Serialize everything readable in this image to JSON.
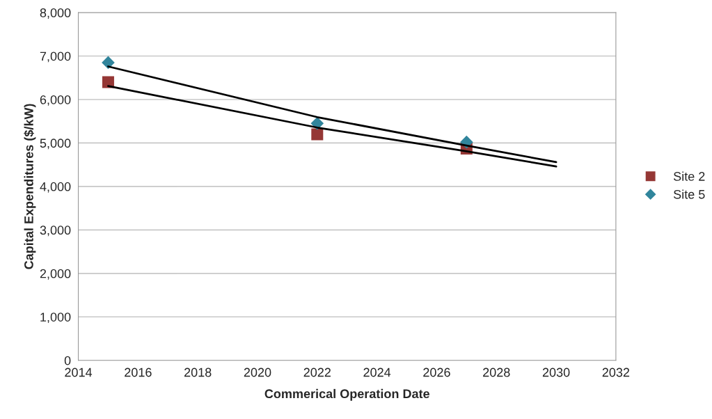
{
  "chart_data": {
    "type": "scatter",
    "xlabel": "Commerical Operation Date",
    "ylabel": "Capital Expenditures ($/kW)",
    "xlim": [
      2014,
      2032
    ],
    "xticks": [
      2014,
      2016,
      2018,
      2020,
      2022,
      2024,
      2026,
      2028,
      2030,
      2032
    ],
    "ylim": [
      0,
      8000
    ],
    "yticks": [
      {
        "value": 0,
        "label": "0"
      },
      {
        "value": 1000,
        "label": "1,000"
      },
      {
        "value": 2000,
        "label": "2,000"
      },
      {
        "value": 3000,
        "label": "3,000"
      },
      {
        "value": 4000,
        "label": "4,000"
      },
      {
        "value": 5000,
        "label": "5,000"
      },
      {
        "value": 6000,
        "label": "6,000"
      },
      {
        "value": 7000,
        "label": "7,000"
      },
      {
        "value": 8000,
        "label": "8,000"
      }
    ],
    "grid": "y",
    "legend": "right",
    "series": [
      {
        "name": "Site 2",
        "color": "#953735",
        "marker": "square",
        "x": [
          2015,
          2022,
          2027
        ],
        "values": [
          6400,
          5200,
          4870
        ]
      },
      {
        "name": "Site 5",
        "color": "#31859c",
        "marker": "diamond",
        "x": [
          2015,
          2022,
          2027
        ],
        "values": [
          6850,
          5450,
          5020
        ]
      },
      {
        "type": "line",
        "color": "#000000",
        "x": [
          2015,
          2022,
          2027,
          2030
        ],
        "values": [
          6310,
          5355,
          4810,
          4460
        ]
      },
      {
        "type": "line",
        "color": "#000000",
        "x": [
          2015,
          2022,
          2027,
          2030
        ],
        "values": [
          6760,
          5595,
          4940,
          4560
        ]
      }
    ]
  }
}
